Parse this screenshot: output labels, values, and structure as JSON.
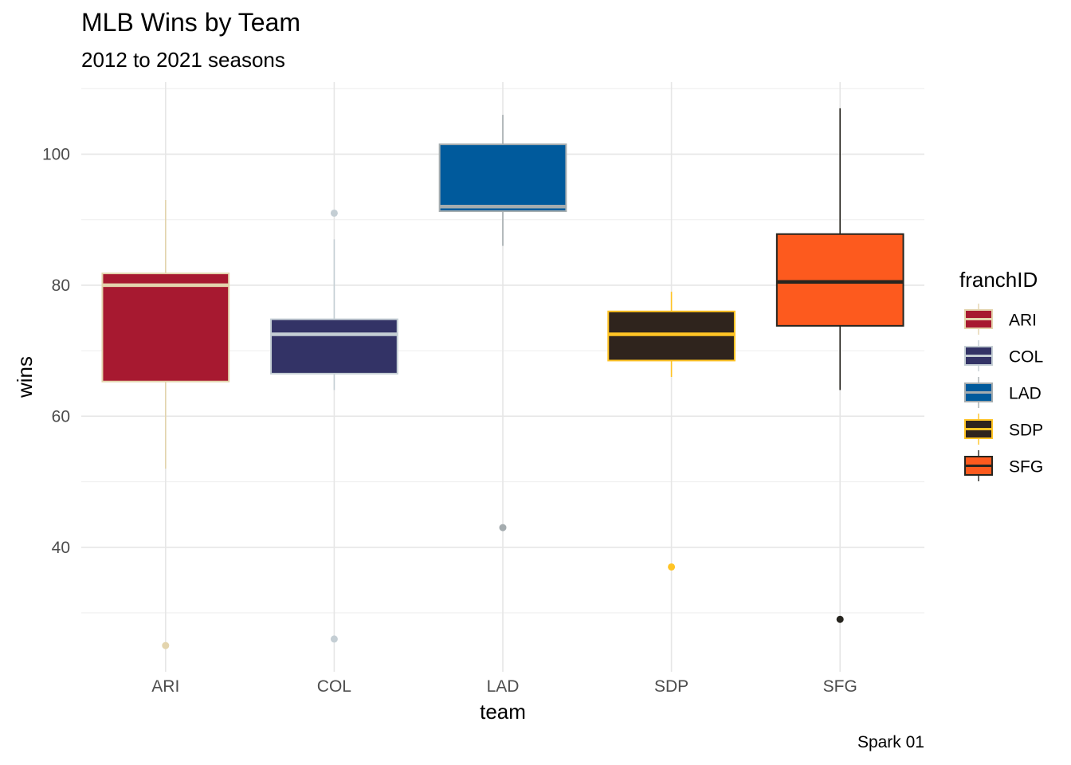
{
  "chart_data": {
    "type": "boxplot",
    "title": "MLB Wins by Team",
    "subtitle": "2012 to 2021 seasons",
    "caption": "Spark 01",
    "xlabel": "team",
    "ylabel": "wins",
    "ylim": [
      21,
      111
    ],
    "yticks": [
      40,
      60,
      80,
      100
    ],
    "grid": true,
    "legend": {
      "title": "franchID",
      "position": "right"
    },
    "categories": [
      "ARI",
      "COL",
      "LAD",
      "SDP",
      "SFG"
    ],
    "boxes": [
      {
        "team": "ARI",
        "whisker_low": 52,
        "q1": 65.3,
        "median": 80,
        "q3": 81.8,
        "whisker_high": 93,
        "outliers": [
          25
        ],
        "fill": "#A71930",
        "line": "#E3D4AD"
      },
      {
        "team": "COL",
        "whisker_low": 64,
        "q1": 66.5,
        "median": 72.5,
        "q3": 74.8,
        "whisker_high": 87,
        "outliers": [
          91,
          26
        ],
        "fill": "#333366",
        "line": "#C4CED4"
      },
      {
        "team": "LAD",
        "whisker_low": 86,
        "q1": 91.3,
        "median": 92,
        "q3": 101.5,
        "whisker_high": 106,
        "outliers": [
          43
        ],
        "fill": "#005A9C",
        "line": "#A5ACAF"
      },
      {
        "team": "SDP",
        "whisker_low": 66,
        "q1": 68.5,
        "median": 72.5,
        "q3": 76,
        "whisker_high": 79,
        "outliers": [
          37
        ],
        "fill": "#2F241D",
        "line": "#FFC425"
      },
      {
        "team": "SFG",
        "whisker_low": 64,
        "q1": 73.8,
        "median": 80.5,
        "q3": 87.8,
        "whisker_high": 107,
        "outliers": [
          29
        ],
        "fill": "#FD5A1E",
        "line": "#27251F"
      }
    ]
  }
}
